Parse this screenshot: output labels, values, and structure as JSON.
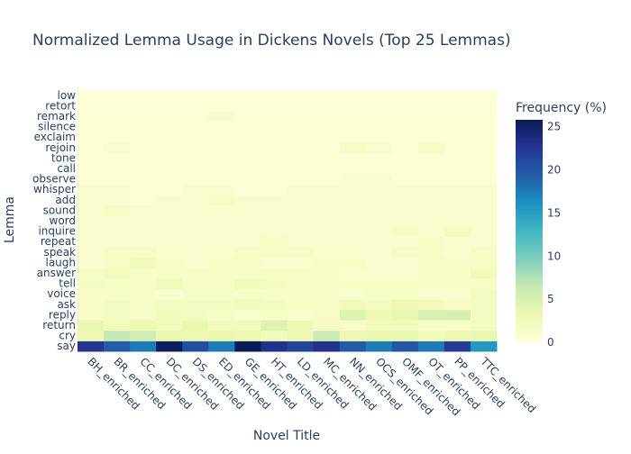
{
  "chart_data": {
    "type": "heatmap",
    "title": "Normalized Lemma Usage in Dickens Novels (Top 25 Lemmas)",
    "xlabel": "Novel Title",
    "ylabel": "Lemma",
    "x": [
      "BH_enriched",
      "BR_enriched",
      "CC_enriched",
      "DC_enriched",
      "DS_enriched",
      "ED_enriched",
      "GE_enriched",
      "HT_enriched",
      "LD_enriched",
      "MC_enriched",
      "NN_enriched",
      "OCS_enriched",
      "OMF_enriched",
      "OT_enriched",
      "PP_enriched",
      "TTC_enriched"
    ],
    "y": [
      "say",
      "cry",
      "return",
      "reply",
      "ask",
      "voice",
      "tell",
      "answer",
      "laugh",
      "speak",
      "repeat",
      "inquire",
      "word",
      "sound",
      "add",
      "whisper",
      "observe",
      "call",
      "tone",
      "rejoin",
      "exclaim",
      "silence",
      "remark",
      "retort",
      "low"
    ],
    "z": [
      [
        22.5,
        19.5,
        17.5,
        25.5,
        20.5,
        17.5,
        25.8,
        23.0,
        21.5,
        23.0,
        19.5,
        17.5,
        20.0,
        17.5,
        22.0,
        15.5
      ],
      [
        3.0,
        6.5,
        5.5,
        3.5,
        3.0,
        3.5,
        3.0,
        2.5,
        3.0,
        6.0,
        3.0,
        3.5,
        3.5,
        2.5,
        3.0,
        3.5
      ],
      [
        3.5,
        2.5,
        3.0,
        2.5,
        3.5,
        2.5,
        2.5,
        4.5,
        3.0,
        2.0,
        1.5,
        2.5,
        2.5,
        1.5,
        1.5,
        2.0
      ],
      [
        1.5,
        2.0,
        1.5,
        2.5,
        2.0,
        1.5,
        1.0,
        1.5,
        1.0,
        1.5,
        4.5,
        3.0,
        3.5,
        5.0,
        5.0,
        2.0
      ],
      [
        1.5,
        2.0,
        1.5,
        2.0,
        2.0,
        2.0,
        2.5,
        2.0,
        1.5,
        1.5,
        2.5,
        2.0,
        3.0,
        2.5,
        1.5,
        2.0
      ],
      [
        1.5,
        1.5,
        1.5,
        1.0,
        1.5,
        1.5,
        1.5,
        1.5,
        1.5,
        1.5,
        1.0,
        1.5,
        1.5,
        1.0,
        1.0,
        2.0
      ],
      [
        2.0,
        1.5,
        1.5,
        2.5,
        1.5,
        1.5,
        2.5,
        2.0,
        1.5,
        1.5,
        1.5,
        1.5,
        1.5,
        1.5,
        1.5,
        1.5
      ],
      [
        1.5,
        2.0,
        1.5,
        1.5,
        1.5,
        1.5,
        1.5,
        1.5,
        1.5,
        1.5,
        1.0,
        1.0,
        1.0,
        1.5,
        1.5,
        2.5
      ],
      [
        1.0,
        1.5,
        2.5,
        1.5,
        1.0,
        1.5,
        1.5,
        1.0,
        1.0,
        1.5,
        1.5,
        1.0,
        1.0,
        1.5,
        1.5,
        1.5
      ],
      [
        1.0,
        1.5,
        1.5,
        1.0,
        1.0,
        1.0,
        1.5,
        1.5,
        1.5,
        1.0,
        1.0,
        1.0,
        1.5,
        1.5,
        1.0,
        1.5
      ],
      [
        1.0,
        1.0,
        1.0,
        1.0,
        1.0,
        1.0,
        1.0,
        1.5,
        1.0,
        1.0,
        1.0,
        1.0,
        1.0,
        1.5,
        1.0,
        1.0
      ],
      [
        1.0,
        1.0,
        1.0,
        1.0,
        1.0,
        1.0,
        1.0,
        1.0,
        1.0,
        1.0,
        1.0,
        1.0,
        1.5,
        1.0,
        2.0,
        1.0
      ],
      [
        1.0,
        1.0,
        1.0,
        1.0,
        1.0,
        1.0,
        1.0,
        1.0,
        1.0,
        1.0,
        1.0,
        1.0,
        1.0,
        1.0,
        1.0,
        1.0
      ],
      [
        1.0,
        1.5,
        1.0,
        1.0,
        1.0,
        1.0,
        1.0,
        1.0,
        1.0,
        1.0,
        1.0,
        1.0,
        1.0,
        1.0,
        1.0,
        1.0
      ],
      [
        1.0,
        1.0,
        0.5,
        1.0,
        1.0,
        1.5,
        1.0,
        1.0,
        1.0,
        1.0,
        1.0,
        1.0,
        1.0,
        1.0,
        1.0,
        1.0
      ],
      [
        1.0,
        1.0,
        0.5,
        0.5,
        1.0,
        1.0,
        0.5,
        0.5,
        1.0,
        1.0,
        1.0,
        1.0,
        1.0,
        1.0,
        1.0,
        1.0
      ],
      [
        0.5,
        0.5,
        0.5,
        0.5,
        0.5,
        0.5,
        0.5,
        0.5,
        0.5,
        0.5,
        1.0,
        1.0,
        0.5,
        0.5,
        0.5,
        0.5
      ],
      [
        0.5,
        0.5,
        0.5,
        0.5,
        0.5,
        0.5,
        0.5,
        0.5,
        0.5,
        0.5,
        0.5,
        0.5,
        0.5,
        0.5,
        0.5,
        0.5
      ],
      [
        0.5,
        0.5,
        0.5,
        0.5,
        0.5,
        0.5,
        0.5,
        0.5,
        0.5,
        0.5,
        0.5,
        0.5,
        0.5,
        0.5,
        0.5,
        0.5
      ],
      [
        0.5,
        1.0,
        0.5,
        0.5,
        0.5,
        0.5,
        0.5,
        0.5,
        0.5,
        0.5,
        1.5,
        1.0,
        0.5,
        1.5,
        0.5,
        0.5
      ],
      [
        0.5,
        0.5,
        0.5,
        0.5,
        0.5,
        0.5,
        0.5,
        0.5,
        0.5,
        0.5,
        0.5,
        0.5,
        0.5,
        0.5,
        0.5,
        0.5
      ],
      [
        0.5,
        0.5,
        0.5,
        0.5,
        0.5,
        0.5,
        0.5,
        0.5,
        0.5,
        0.5,
        0.5,
        0.5,
        0.5,
        0.5,
        0.5,
        0.5
      ],
      [
        0.5,
        0.5,
        0.5,
        0.5,
        0.5,
        1.0,
        0.5,
        0.5,
        0.5,
        0.5,
        0.5,
        0.5,
        0.5,
        0.5,
        0.5,
        0.5
      ],
      [
        0.3,
        0.3,
        0.3,
        0.3,
        0.3,
        0.3,
        0.3,
        0.3,
        0.3,
        0.3,
        0.3,
        0.3,
        0.3,
        0.3,
        0.3,
        0.3
      ],
      [
        0.2,
        0.2,
        0.2,
        0.2,
        0.2,
        0.2,
        0.2,
        0.2,
        0.2,
        0.2,
        0.2,
        0.2,
        0.2,
        0.2,
        0.2,
        0.2
      ]
    ],
    "zmin": 0,
    "zmax": 25.8,
    "colorscale": "YlGnBu",
    "colorbar": {
      "title": "Frequency (%)",
      "ticks": [
        0,
        5,
        10,
        15,
        20,
        25
      ]
    }
  }
}
